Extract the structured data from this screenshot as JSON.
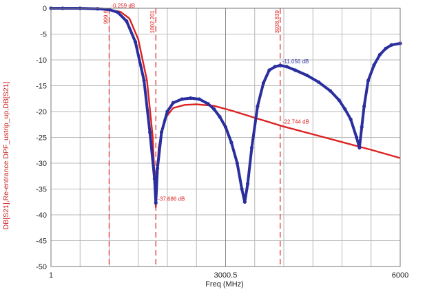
{
  "chart_data": {
    "type": "line",
    "xlabel": "Freq (MHz)",
    "ylabel": "DB[S21],Re-entrance DPF_ustrip_up,DB[S21]",
    "xlim": [
      1,
      6000
    ],
    "ylim": [
      -50,
      0
    ],
    "x_tick_values": [
      1,
      3000.5,
      6000
    ],
    "x_tick_labels": [
      "1",
      "3000.5",
      "6000"
    ],
    "y_tick_values": [
      0,
      -5,
      -10,
      -15,
      -20,
      -25,
      -30,
      -35,
      -40,
      -45,
      -50
    ],
    "y_tick_labels": [
      "0",
      "-5",
      "-10",
      "-15",
      "-20",
      "-25",
      "-30",
      "-35",
      "-40",
      "-45",
      "-50"
    ],
    "grid": true,
    "colors": {
      "red": "#dd2222",
      "blue": "#2b2f9e",
      "axis_label": "#cc2222",
      "grid": "#b8b8b8",
      "tick_text": "#222222"
    },
    "series": [
      {
        "color": "#dd2222",
        "style": "line",
        "x": [
          1,
          300,
          600,
          900,
          1000,
          1200,
          1350,
          1500,
          1650,
          1750,
          1802,
          1850,
          1950,
          2100,
          2300,
          2500,
          2800,
          3100,
          3500,
          4000,
          4500,
          5000,
          5500,
          6000
        ],
        "y": [
          0,
          0,
          -0.05,
          -0.2,
          -0.259,
          -0.7,
          -2,
          -6,
          -14,
          -25,
          -38.5,
          -27,
          -21.5,
          -19.3,
          -18.7,
          -18.6,
          -18.9,
          -19.8,
          -21.2,
          -22.9,
          -24.4,
          -25.9,
          -27.4,
          -29
        ]
      },
      {
        "color": "#2b2f9e",
        "style": "dots",
        "x": [
          1,
          200,
          500,
          800,
          1000,
          1150,
          1300,
          1450,
          1600,
          1700,
          1780,
          1802,
          1830,
          1900,
          2000,
          2100,
          2250,
          2400,
          2550,
          2700,
          2800,
          2900,
          3000,
          3100,
          3200,
          3280,
          3330,
          3380,
          3450,
          3550,
          3650,
          3750,
          3850,
          3939,
          4050,
          4200,
          4400,
          4600,
          4800,
          4950,
          5050,
          5150,
          5250,
          5300,
          5340,
          5380,
          5450,
          5550,
          5650,
          5750,
          5850,
          6000
        ],
        "y": [
          0,
          0,
          0,
          -0.1,
          -0.259,
          -0.8,
          -2.5,
          -6.5,
          -14,
          -24,
          -33,
          -37.686,
          -31,
          -24,
          -20,
          -18.3,
          -17.6,
          -17.4,
          -17.6,
          -18.5,
          -19.5,
          -21,
          -23,
          -26,
          -30,
          -35,
          -37.5,
          -34,
          -27,
          -19,
          -14.5,
          -12,
          -11.3,
          -11.056,
          -11.3,
          -12,
          -13,
          -14.3,
          -16,
          -17.8,
          -19.5,
          -21.5,
          -25,
          -27,
          -23,
          -19,
          -14,
          -11,
          -9,
          -7.8,
          -7.1,
          -6.8
        ]
      }
    ],
    "markers": [
      {
        "x": 999.6,
        "label": "999.6",
        "color": "#dd2222"
      },
      {
        "x": 1802.201,
        "label": "1802.201",
        "color": "#dd2222"
      },
      {
        "x": 3938.839,
        "label": "3938.839",
        "color": "#dd2222"
      }
    ],
    "annotations": [
      {
        "text": "-0.259 dB",
        "x": 1000,
        "y": -0.259,
        "color": "#dd2222"
      },
      {
        "text": "-37.686 dB",
        "x": 1802,
        "y": -37.686,
        "color": "#dd2222"
      },
      {
        "text": "-11.056 dB",
        "x": 3939,
        "y": -11.056,
        "color": "#2b2f9e"
      },
      {
        "text": "-22.744 dB",
        "x": 3939,
        "y": -22.744,
        "color": "#dd2222"
      }
    ]
  }
}
